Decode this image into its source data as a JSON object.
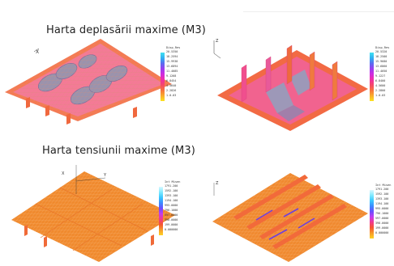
{
  "titles": {
    "displacement": "Harta deplasării maxime (M3)",
    "stress": "Harta tensiunii maxime (M3)"
  },
  "panels": [
    {
      "id": "displacement-left",
      "legend": {
        "title": "Disp_Res",
        "ticks": [
          "20.5350",
          "18.2594",
          "15.9938",
          "13.6894",
          "11.4085",
          "9.1268",
          "6.8454",
          "4.5640",
          "2.2826",
          "1.0-03"
        ],
        "gradient": [
          "#40e0f0",
          "#2fb2f2",
          "#5a6cf0",
          "#9a3df0",
          "#d02be0",
          "#f02ea8",
          "#f4486a",
          "#f7743d",
          "#f9ac2c",
          "#fce21e"
        ]
      }
    },
    {
      "id": "displacement-right",
      "legend": {
        "title": "Disp_Res",
        "ticks": [
          "20.5320",
          "18.2500",
          "15.9680",
          "13.6860",
          "11.4050",
          "9.1227",
          "6.8400",
          "4.5600",
          "2.2800",
          "1.0-03"
        ],
        "gradient": [
          "#40e0f0",
          "#2fb2f2",
          "#5a6cf0",
          "#9a3df0",
          "#d02be0",
          "#f02ea8",
          "#f4486a",
          "#f7743d",
          "#f9ac2c",
          "#fce21e"
        ]
      }
    },
    {
      "id": "stress-left",
      "legend": {
        "title": "Int Misen",
        "ticks": [
          "1791.200",
          "1592.100",
          "1393.100",
          "1194.100",
          "995.0000",
          "796.1000",
          "597.0000",
          "398.0000",
          "199.0000",
          "0.000000"
        ],
        "gradient": [
          "#d9f7ff",
          "#7fe9ff",
          "#39c8ff",
          "#3b8cff",
          "#6a4dff",
          "#c23cf0",
          "#f23a8c",
          "#f5562e",
          "#f79a2a",
          "#ffd324"
        ]
      }
    },
    {
      "id": "stress-right",
      "legend": {
        "title": "Int Misen",
        "ticks": [
          "1791.200",
          "1592.100",
          "1393.100",
          "1194.100",
          "995.0000",
          "796.1000",
          "597.0000",
          "398.0000",
          "199.0000",
          "0.000000"
        ],
        "gradient": [
          "#d9f7ff",
          "#7fe9ff",
          "#39c8ff",
          "#3b8cff",
          "#6a4dff",
          "#c23cf0",
          "#f23a8c",
          "#f5562e",
          "#f79a2a",
          "#ffd324"
        ]
      }
    }
  ],
  "axes_labels": {
    "x": "X",
    "y": "Y",
    "z": "Z"
  }
}
